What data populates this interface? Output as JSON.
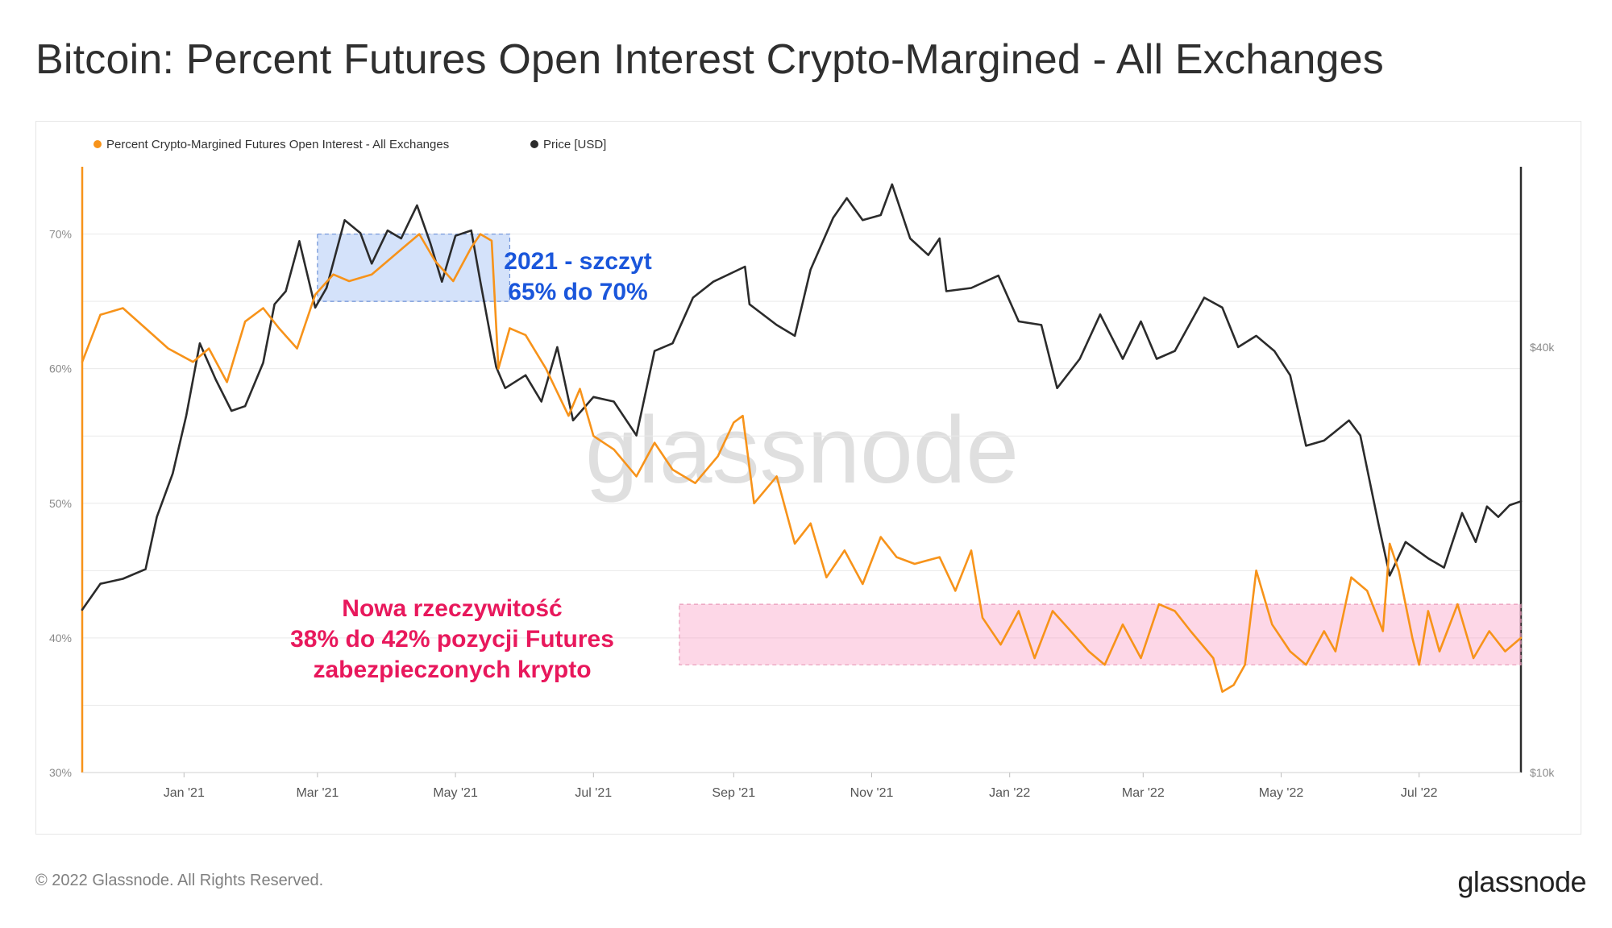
{
  "title": "Bitcoin: Percent Futures Open Interest Crypto-Margined - All Exchanges",
  "footer": "© 2022 Glassnode. All Rights Reserved.",
  "brand": "glassnode",
  "watermark": "glassnode",
  "colors": {
    "orange": "#f7931a",
    "dark": "#2b2b2b",
    "blue": "#1a56db",
    "pink": "#e8185c"
  },
  "chart_data": {
    "type": "line",
    "legend_position": "top-left",
    "grid": true,
    "x_ticks": [
      "Jan '21",
      "Mar '21",
      "May '21",
      "Jul '21",
      "Sep '21",
      "Nov '21",
      "Jan '22",
      "Mar '22",
      "May '22",
      "Jul '22"
    ],
    "xlim": [
      "2020-11-17",
      "2022-08-15"
    ],
    "y_left": {
      "ticks": [
        "30%",
        "40%",
        "50%",
        "60%",
        "70%"
      ],
      "range": [
        30,
        75
      ]
    },
    "y_right": {
      "ticks": [
        "$10k",
        "$40k"
      ],
      "scale": "log",
      "range": [
        10000,
        72000
      ]
    },
    "series": [
      {
        "name": "Percent Crypto-Margined Futures Open Interest - All Exchanges",
        "color": "#f7931a",
        "axis": "left",
        "points": [
          [
            "2020-11-17",
            60.5
          ],
          [
            "2020-11-25",
            64.0
          ],
          [
            "2020-12-05",
            64.5
          ],
          [
            "2020-12-15",
            63.0
          ],
          [
            "2020-12-25",
            61.5
          ],
          [
            "2021-01-05",
            60.5
          ],
          [
            "2021-01-12",
            61.5
          ],
          [
            "2021-01-20",
            59.0
          ],
          [
            "2021-01-28",
            63.5
          ],
          [
            "2021-02-05",
            64.5
          ],
          [
            "2021-02-12",
            63.0
          ],
          [
            "2021-02-20",
            61.5
          ],
          [
            "2021-02-28",
            65.5
          ],
          [
            "2021-03-08",
            67.0
          ],
          [
            "2021-03-15",
            66.5
          ],
          [
            "2021-03-25",
            67.0
          ],
          [
            "2021-04-01",
            68.0
          ],
          [
            "2021-04-08",
            69.0
          ],
          [
            "2021-04-15",
            70.0
          ],
          [
            "2021-04-22",
            68.0
          ],
          [
            "2021-04-30",
            66.5
          ],
          [
            "2021-05-08",
            69.0
          ],
          [
            "2021-05-12",
            70.0
          ],
          [
            "2021-05-17",
            69.5
          ],
          [
            "2021-05-20",
            60.0
          ],
          [
            "2021-05-25",
            63.0
          ],
          [
            "2021-06-01",
            62.5
          ],
          [
            "2021-06-10",
            60.0
          ],
          [
            "2021-06-20",
            56.5
          ],
          [
            "2021-06-25",
            58.5
          ],
          [
            "2021-07-01",
            55.0
          ],
          [
            "2021-07-10",
            54.0
          ],
          [
            "2021-07-20",
            52.0
          ],
          [
            "2021-07-28",
            54.5
          ],
          [
            "2021-08-05",
            52.5
          ],
          [
            "2021-08-15",
            51.5
          ],
          [
            "2021-08-25",
            53.5
          ],
          [
            "2021-09-01",
            56.0
          ],
          [
            "2021-09-05",
            56.5
          ],
          [
            "2021-09-10",
            50.0
          ],
          [
            "2021-09-20",
            52.0
          ],
          [
            "2021-09-28",
            47.0
          ],
          [
            "2021-10-05",
            48.5
          ],
          [
            "2021-10-12",
            44.5
          ],
          [
            "2021-10-20",
            46.5
          ],
          [
            "2021-10-28",
            44.0
          ],
          [
            "2021-11-05",
            47.5
          ],
          [
            "2021-11-12",
            46.0
          ],
          [
            "2021-11-20",
            45.5
          ],
          [
            "2021-12-01",
            46.0
          ],
          [
            "2021-12-08",
            43.5
          ],
          [
            "2021-12-15",
            46.5
          ],
          [
            "2021-12-20",
            41.5
          ],
          [
            "2021-12-28",
            39.5
          ],
          [
            "2022-01-05",
            42.0
          ],
          [
            "2022-01-12",
            38.5
          ],
          [
            "2022-01-20",
            42.0
          ],
          [
            "2022-01-28",
            40.5
          ],
          [
            "2022-02-05",
            39.0
          ],
          [
            "2022-02-12",
            38.0
          ],
          [
            "2022-02-20",
            41.0
          ],
          [
            "2022-02-28",
            38.5
          ],
          [
            "2022-03-08",
            42.5
          ],
          [
            "2022-03-15",
            42.0
          ],
          [
            "2022-03-22",
            40.5
          ],
          [
            "2022-04-01",
            38.5
          ],
          [
            "2022-04-05",
            36.0
          ],
          [
            "2022-04-10",
            36.5
          ],
          [
            "2022-04-15",
            38.0
          ],
          [
            "2022-04-20",
            45.0
          ],
          [
            "2022-04-27",
            41.0
          ],
          [
            "2022-05-05",
            39.0
          ],
          [
            "2022-05-12",
            38.0
          ],
          [
            "2022-05-20",
            40.5
          ],
          [
            "2022-05-25",
            39.0
          ],
          [
            "2022-06-01",
            44.5
          ],
          [
            "2022-06-08",
            43.5
          ],
          [
            "2022-06-15",
            40.5
          ],
          [
            "2022-06-18",
            47.0
          ],
          [
            "2022-06-22",
            45.0
          ],
          [
            "2022-06-28",
            40.0
          ],
          [
            "2022-07-01",
            38.0
          ],
          [
            "2022-07-05",
            42.0
          ],
          [
            "2022-07-10",
            39.0
          ],
          [
            "2022-07-18",
            42.5
          ],
          [
            "2022-07-25",
            38.5
          ],
          [
            "2022-08-01",
            40.5
          ],
          [
            "2022-08-08",
            39.0
          ],
          [
            "2022-08-15",
            40.0
          ]
        ]
      },
      {
        "name": "Price [USD]",
        "color": "#2b2b2b",
        "axis": "right",
        "points": [
          [
            "2020-11-17",
            17000
          ],
          [
            "2020-11-25",
            18500
          ],
          [
            "2020-12-05",
            18800
          ],
          [
            "2020-12-15",
            19400
          ],
          [
            "2020-12-20",
            23000
          ],
          [
            "2020-12-27",
            26500
          ],
          [
            "2021-01-02",
            32000
          ],
          [
            "2021-01-08",
            40500
          ],
          [
            "2021-01-15",
            36000
          ],
          [
            "2021-01-22",
            32500
          ],
          [
            "2021-01-28",
            33000
          ],
          [
            "2021-02-05",
            38000
          ],
          [
            "2021-02-10",
            46000
          ],
          [
            "2021-02-15",
            48000
          ],
          [
            "2021-02-21",
            56500
          ],
          [
            "2021-02-28",
            45500
          ],
          [
            "2021-03-05",
            48500
          ],
          [
            "2021-03-13",
            60500
          ],
          [
            "2021-03-20",
            58000
          ],
          [
            "2021-03-25",
            52500
          ],
          [
            "2021-04-01",
            58500
          ],
          [
            "2021-04-07",
            57000
          ],
          [
            "2021-04-14",
            63500
          ],
          [
            "2021-04-20",
            56000
          ],
          [
            "2021-04-25",
            49500
          ],
          [
            "2021-05-01",
            57500
          ],
          [
            "2021-05-08",
            58500
          ],
          [
            "2021-05-12",
            49500
          ],
          [
            "2021-05-19",
            37500
          ],
          [
            "2021-05-23",
            35000
          ],
          [
            "2021-06-01",
            36500
          ],
          [
            "2021-06-08",
            33500
          ],
          [
            "2021-06-15",
            40000
          ],
          [
            "2021-06-22",
            31500
          ],
          [
            "2021-07-01",
            34000
          ],
          [
            "2021-07-10",
            33500
          ],
          [
            "2021-07-20",
            30000
          ],
          [
            "2021-07-28",
            39500
          ],
          [
            "2021-08-05",
            40500
          ],
          [
            "2021-08-14",
            47000
          ],
          [
            "2021-08-23",
            49500
          ],
          [
            "2021-09-06",
            52000
          ],
          [
            "2021-09-08",
            46000
          ],
          [
            "2021-09-20",
            43000
          ],
          [
            "2021-09-28",
            41500
          ],
          [
            "2021-10-05",
            51500
          ],
          [
            "2021-10-15",
            61000
          ],
          [
            "2021-10-21",
            65000
          ],
          [
            "2021-10-28",
            60500
          ],
          [
            "2021-11-05",
            61500
          ],
          [
            "2021-11-10",
            68000
          ],
          [
            "2021-11-18",
            57000
          ],
          [
            "2021-11-26",
            54000
          ],
          [
            "2021-12-01",
            57000
          ],
          [
            "2021-12-04",
            48000
          ],
          [
            "2021-12-15",
            48500
          ],
          [
            "2021-12-27",
            50500
          ],
          [
            "2022-01-05",
            43500
          ],
          [
            "2022-01-15",
            43000
          ],
          [
            "2022-01-22",
            35000
          ],
          [
            "2022-02-01",
            38500
          ],
          [
            "2022-02-10",
            44500
          ],
          [
            "2022-02-20",
            38500
          ],
          [
            "2022-02-28",
            43500
          ],
          [
            "2022-03-07",
            38500
          ],
          [
            "2022-03-15",
            39500
          ],
          [
            "2022-03-28",
            47000
          ],
          [
            "2022-04-05",
            45500
          ],
          [
            "2022-04-12",
            40000
          ],
          [
            "2022-04-20",
            41500
          ],
          [
            "2022-04-28",
            39500
          ],
          [
            "2022-05-05",
            36500
          ],
          [
            "2022-05-12",
            29000
          ],
          [
            "2022-05-20",
            29500
          ],
          [
            "2022-05-31",
            31500
          ],
          [
            "2022-06-05",
            30000
          ],
          [
            "2022-06-13",
            22500
          ],
          [
            "2022-06-18",
            19000
          ],
          [
            "2022-06-25",
            21200
          ],
          [
            "2022-07-05",
            20100
          ],
          [
            "2022-07-12",
            19500
          ],
          [
            "2022-07-20",
            23300
          ],
          [
            "2022-07-26",
            21200
          ],
          [
            "2022-07-31",
            23800
          ],
          [
            "2022-08-05",
            23000
          ],
          [
            "2022-08-10",
            23900
          ],
          [
            "2022-08-15",
            24200
          ]
        ]
      }
    ],
    "annotations": [
      {
        "type": "box",
        "color": "#1a56db",
        "x": [
          "2021-03-01",
          "2021-05-25"
        ],
        "y": [
          65,
          70
        ],
        "lines": [
          "2021 - szczyt",
          "65% do 70%"
        ]
      },
      {
        "type": "box",
        "color": "#e8185c",
        "x": [
          "2021-08-08",
          "2022-08-15"
        ],
        "y": [
          38,
          42.5
        ],
        "lines": [
          "Nowa rzeczywitość",
          "38% do 42% pozycji Futures",
          "zabezpieczonych krypto"
        ]
      }
    ]
  }
}
